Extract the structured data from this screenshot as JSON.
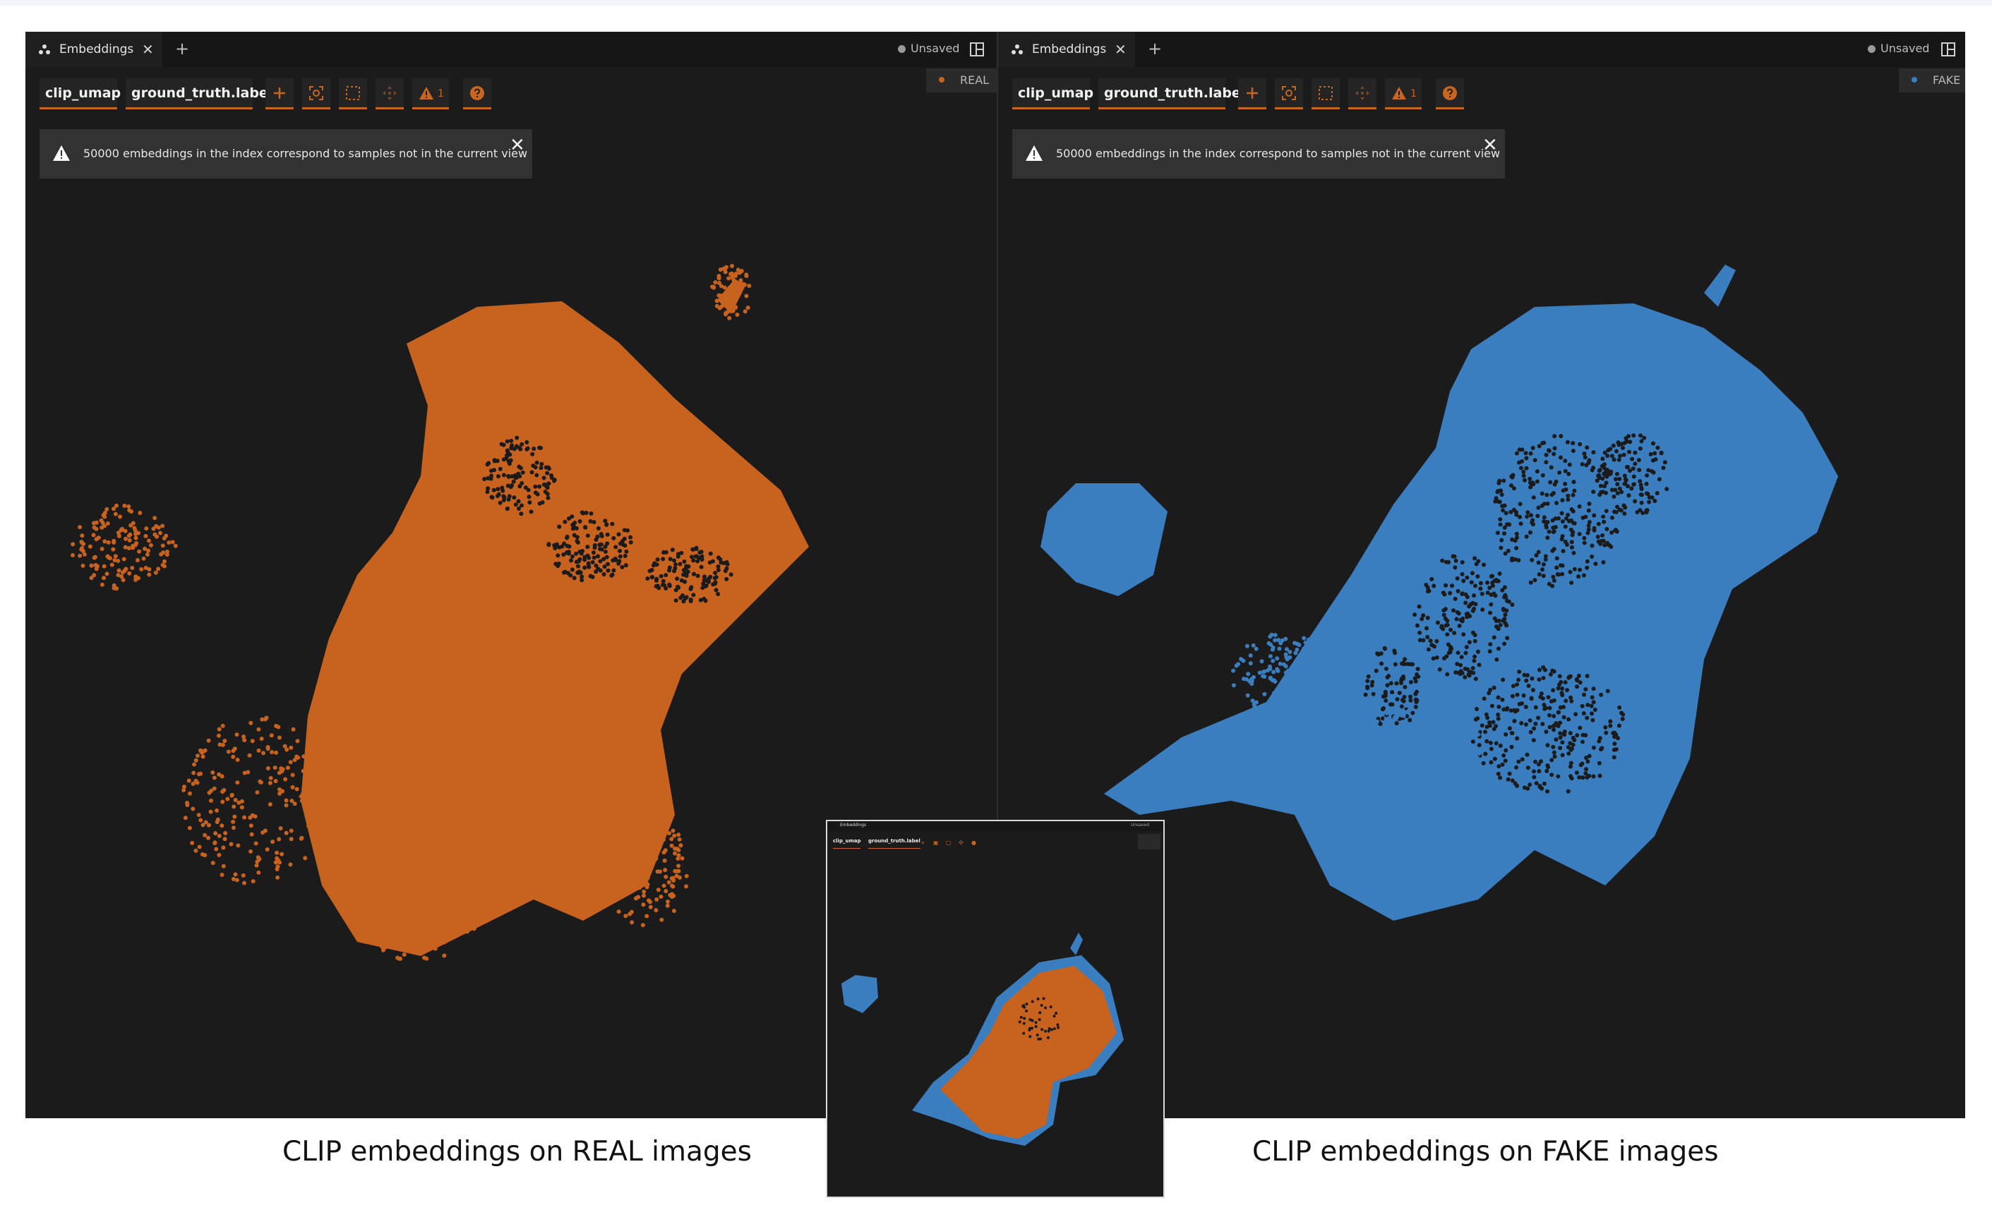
{
  "colors": {
    "real": "#c8621f",
    "fake": "#3a7ebf",
    "panel_bg": "#1b1b1b",
    "accent": "#c8651f"
  },
  "panels": [
    {
      "id": "left",
      "tab_label": "Embeddings",
      "unsaved_label": "Unsaved",
      "legend_label": "REAL",
      "chips": [
        "clip_umap",
        "ground_truth.label"
      ],
      "warning_count": "1",
      "notice": "50000 embeddings in the index correspond to samples not in the current view"
    },
    {
      "id": "right",
      "tab_label": "Embeddings",
      "unsaved_label": "Unsaved",
      "legend_label": "FAKE",
      "chips": [
        "clip_umap",
        "ground_truth.label"
      ],
      "warning_count": "1",
      "notice": "50000 embeddings in the index correspond to samples not in the current view"
    }
  ],
  "inset": {
    "tab_label": "Embeddings",
    "unsaved_label": "Unsaved",
    "chips": [
      "clip_umap",
      "ground_truth.label"
    ]
  },
  "captions": {
    "left": "CLIP embeddings on REAL images",
    "right": "CLIP embeddings on FAKE images"
  },
  "icons": [
    "embeddings-icon",
    "close-icon",
    "plus-icon",
    "layout-icon",
    "add-icon",
    "zoom-fit-icon",
    "lasso-select-icon",
    "pan-icon",
    "warning-icon",
    "help-icon"
  ]
}
